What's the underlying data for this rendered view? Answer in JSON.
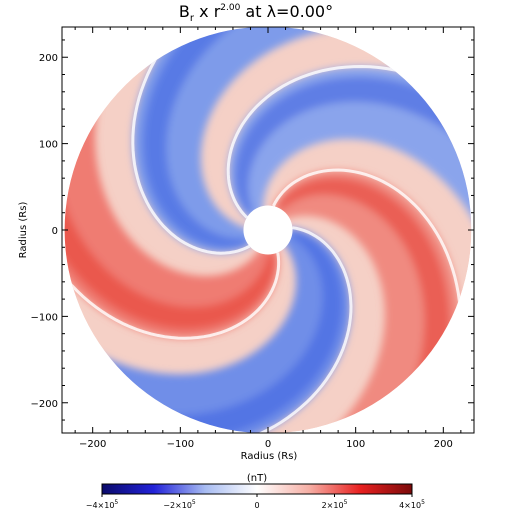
{
  "chart_data": {
    "type": "heatmap",
    "title": {
      "var": "B",
      "var_sub": "r",
      "times": "x",
      "rvar": "r",
      "rexp": "2.00",
      "at": "at",
      "lambda_sym": "λ",
      "lambda_val": "=0.00°"
    },
    "xlabel": "Radius (Rs)",
    "ylabel": "Radius (Rs)",
    "xlim": [
      -235,
      235
    ],
    "ylim": [
      -235,
      235
    ],
    "xticks": [
      -200,
      -100,
      0,
      100,
      200
    ],
    "yticks": [
      -200,
      -100,
      0,
      100,
      200
    ],
    "inner_radius_rs": 28,
    "outer_radius_rs": 232,
    "colorbar": {
      "label": "(nT)",
      "range": [
        -400000,
        400000
      ],
      "ticks": [
        {
          "value": -400000,
          "mant": "−4×10",
          "exp": "5"
        },
        {
          "value": -200000,
          "mant": "−2×10",
          "exp": "5"
        },
        {
          "value": 0,
          "mant": "0",
          "exp": ""
        },
        {
          "value": 200000,
          "mant": "2×10",
          "exp": "5"
        },
        {
          "value": 400000,
          "mant": "4×10",
          "exp": "5"
        }
      ],
      "colors": [
        "#0a0a6a",
        "#2222d8",
        "#a8bcf2",
        "#ffffff",
        "#f6b0a6",
        "#e82020",
        "#7a0a0a"
      ]
    },
    "arms": [
      {
        "polarity": "negative",
        "theta0_deg": 200,
        "color": "#7e9bea"
      },
      {
        "polarity": "positive",
        "theta0_deg": 272,
        "color": "#ef7c72"
      },
      {
        "polarity": "negative",
        "theta0_deg": 344,
        "color": "#6f8ee8"
      },
      {
        "polarity": "positive",
        "theta0_deg": 56,
        "color": "#f08a80"
      },
      {
        "polarity": "negative",
        "theta0_deg": 128,
        "color": "#8aa4ec"
      }
    ]
  }
}
